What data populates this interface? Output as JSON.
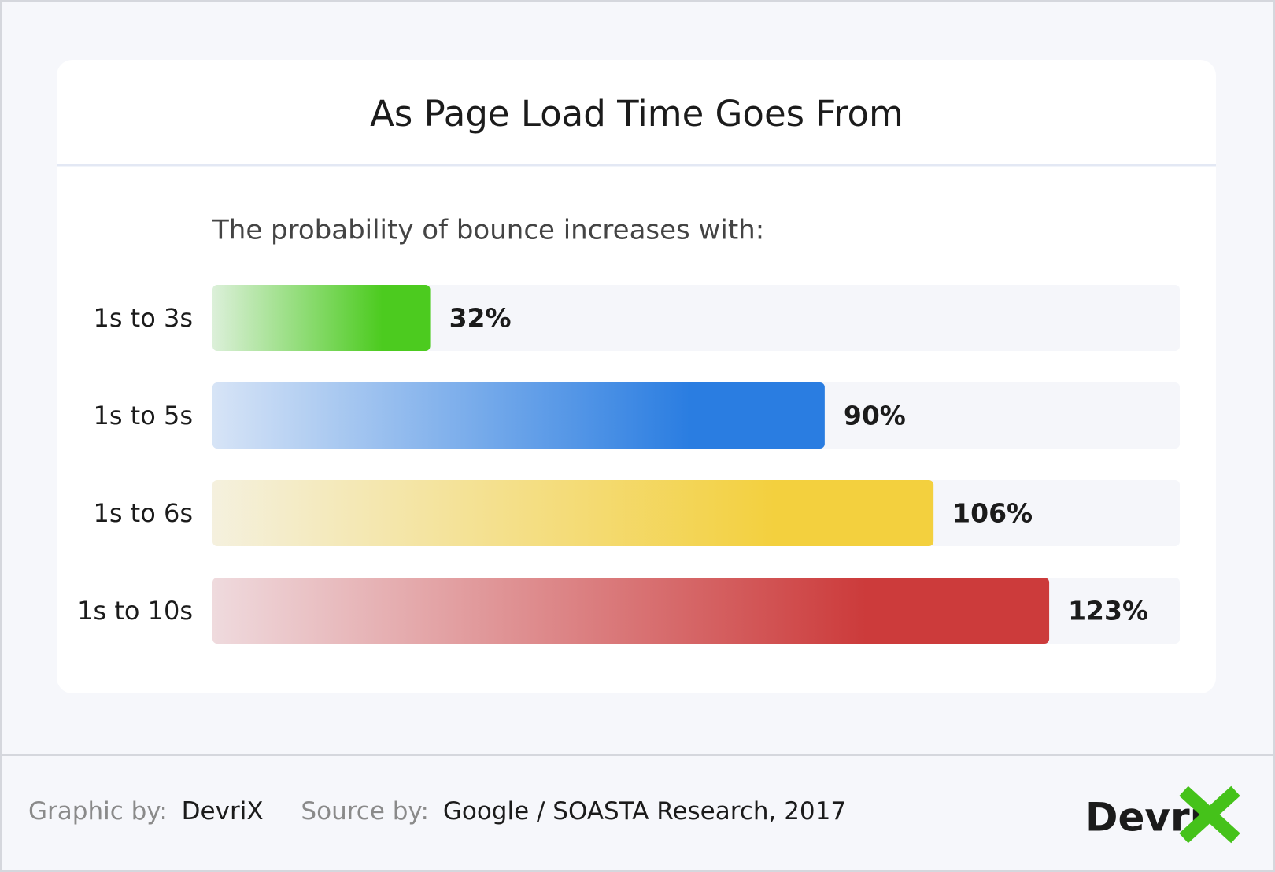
{
  "chart_data": {
    "type": "bar",
    "orientation": "horizontal",
    "title": "As Page Load Time Goes From",
    "subtitle": "The probability of bounce increases with:",
    "categories": [
      "1s to 3s",
      "1s to 5s",
      "1s to 6s",
      "1s to 10s"
    ],
    "values": [
      32,
      90,
      106,
      123
    ],
    "value_labels": [
      "32%",
      "90%",
      "106%",
      "123%"
    ],
    "colors": [
      "#4ccb1f",
      "#2a7de1",
      "#f3d03e",
      "#cc3b3b"
    ]
  },
  "footer": {
    "graphic_label": "Graphic by:",
    "graphic_value": "DevriX",
    "source_label": "Source by:",
    "source_value": "Google / SOASTA Research, 2017",
    "logo": "Devri"
  }
}
